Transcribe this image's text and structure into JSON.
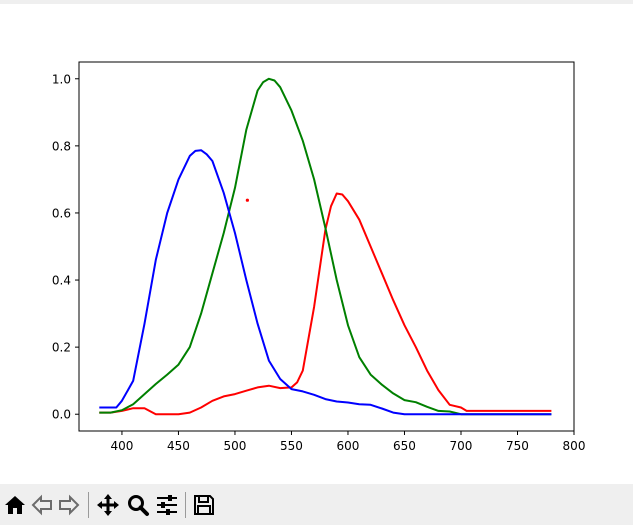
{
  "toolbar": {
    "buttons": [
      {
        "name": "home-icon"
      },
      {
        "name": "back-icon"
      },
      {
        "name": "forward-icon"
      },
      {
        "name": "pan-icon"
      },
      {
        "name": "zoom-icon"
      },
      {
        "name": "configure-subplots-icon"
      },
      {
        "name": "save-icon"
      }
    ]
  },
  "chart_data": {
    "type": "line",
    "title": "",
    "xlabel": "",
    "ylabel": "",
    "xlim": [
      362,
      800
    ],
    "ylim": [
      -0.05,
      1.05
    ],
    "xticks": [
      "400",
      "450",
      "500",
      "550",
      "600",
      "650",
      "700",
      "750",
      "800"
    ],
    "yticks": [
      "0.0",
      "0.2",
      "0.4",
      "0.6",
      "0.8",
      "1.0"
    ],
    "grid": false,
    "series": [
      {
        "color": "#ff0000",
        "points": [
          [
            380,
            0.005
          ],
          [
            390,
            0.005
          ],
          [
            400,
            0.01
          ],
          [
            410,
            0.018
          ],
          [
            420,
            0.018
          ],
          [
            430,
            0.0
          ],
          [
            440,
            0.0
          ],
          [
            450,
            0.0
          ],
          [
            460,
            0.005
          ],
          [
            470,
            0.02
          ],
          [
            480,
            0.04
          ],
          [
            490,
            0.053
          ],
          [
            500,
            0.06
          ],
          [
            510,
            0.07
          ],
          [
            520,
            0.08
          ],
          [
            530,
            0.085
          ],
          [
            540,
            0.078
          ],
          [
            550,
            0.08
          ],
          [
            555,
            0.095
          ],
          [
            560,
            0.13
          ],
          [
            570,
            0.32
          ],
          [
            580,
            0.55
          ],
          [
            585,
            0.62
          ],
          [
            590,
            0.658
          ],
          [
            595,
            0.655
          ],
          [
            600,
            0.635
          ],
          [
            610,
            0.58
          ],
          [
            620,
            0.5
          ],
          [
            630,
            0.42
          ],
          [
            640,
            0.34
          ],
          [
            650,
            0.265
          ],
          [
            660,
            0.2
          ],
          [
            670,
            0.13
          ],
          [
            680,
            0.072
          ],
          [
            690,
            0.028
          ],
          [
            700,
            0.02
          ],
          [
            705,
            0.01
          ],
          [
            720,
            0.01
          ],
          [
            740,
            0.01
          ],
          [
            760,
            0.01
          ],
          [
            780,
            0.01
          ]
        ]
      },
      {
        "color": "#008000",
        "points": [
          [
            380,
            0.005
          ],
          [
            390,
            0.005
          ],
          [
            400,
            0.012
          ],
          [
            410,
            0.03
          ],
          [
            420,
            0.06
          ],
          [
            430,
            0.09
          ],
          [
            440,
            0.118
          ],
          [
            450,
            0.148
          ],
          [
            460,
            0.2
          ],
          [
            470,
            0.3
          ],
          [
            480,
            0.42
          ],
          [
            490,
            0.54
          ],
          [
            500,
            0.675
          ],
          [
            510,
            0.848
          ],
          [
            520,
            0.965
          ],
          [
            525,
            0.99
          ],
          [
            530,
            1.0
          ],
          [
            535,
            0.995
          ],
          [
            540,
            0.975
          ],
          [
            550,
            0.905
          ],
          [
            560,
            0.815
          ],
          [
            570,
            0.7
          ],
          [
            580,
            0.555
          ],
          [
            590,
            0.4
          ],
          [
            600,
            0.265
          ],
          [
            610,
            0.17
          ],
          [
            620,
            0.118
          ],
          [
            630,
            0.088
          ],
          [
            640,
            0.062
          ],
          [
            650,
            0.042
          ],
          [
            660,
            0.036
          ],
          [
            670,
            0.022
          ],
          [
            680,
            0.01
          ],
          [
            690,
            0.008
          ],
          [
            700,
            0.0
          ],
          [
            720,
            0.0
          ],
          [
            750,
            0.0
          ],
          [
            780,
            0.0
          ]
        ]
      },
      {
        "color": "#0000ff",
        "points": [
          [
            380,
            0.02
          ],
          [
            395,
            0.02
          ],
          [
            400,
            0.04
          ],
          [
            405,
            0.07
          ],
          [
            410,
            0.1
          ],
          [
            420,
            0.27
          ],
          [
            430,
            0.46
          ],
          [
            440,
            0.6
          ],
          [
            450,
            0.7
          ],
          [
            460,
            0.77
          ],
          [
            465,
            0.785
          ],
          [
            470,
            0.787
          ],
          [
            475,
            0.775
          ],
          [
            480,
            0.755
          ],
          [
            490,
            0.66
          ],
          [
            500,
            0.54
          ],
          [
            510,
            0.4
          ],
          [
            520,
            0.27
          ],
          [
            530,
            0.16
          ],
          [
            540,
            0.105
          ],
          [
            550,
            0.075
          ],
          [
            560,
            0.068
          ],
          [
            570,
            0.058
          ],
          [
            580,
            0.045
          ],
          [
            590,
            0.038
          ],
          [
            600,
            0.035
          ],
          [
            610,
            0.03
          ],
          [
            620,
            0.028
          ],
          [
            630,
            0.017
          ],
          [
            640,
            0.005
          ],
          [
            650,
            0.0
          ],
          [
            670,
            0.0
          ],
          [
            700,
            0.0
          ],
          [
            740,
            0.0
          ],
          [
            780,
            0.0
          ]
        ]
      }
    ],
    "markers": [
      {
        "color": "#ff0000",
        "x": 511,
        "y": 0.638
      }
    ]
  }
}
